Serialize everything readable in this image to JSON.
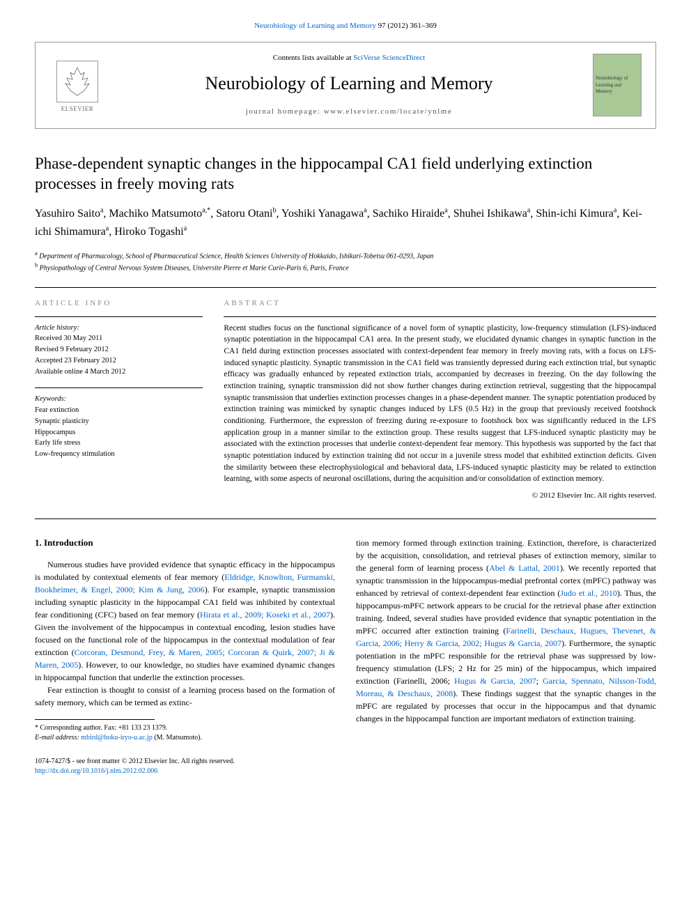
{
  "top_citation": {
    "journal_link": "Neurobiology of Learning and Memory",
    "volume_pages": " 97 (2012) 361–369"
  },
  "header": {
    "publisher": "ELSEVIER",
    "contents_prefix": "Contents lists available at ",
    "contents_link": "SciVerse ScienceDirect",
    "journal_name": "Neurobiology of Learning and Memory",
    "homepage_prefix": "journal homepage: ",
    "homepage_url": "www.elsevier.com/locate/ynlme",
    "cover_text": "Neurobiology of Learning and Memory"
  },
  "title": "Phase-dependent synaptic changes in the hippocampal CA1 field underlying extinction processes in freely moving rats",
  "authors": [
    {
      "name": "Yasuhiro Saito",
      "sup": "a"
    },
    {
      "name": "Machiko Matsumoto",
      "sup": "a,*"
    },
    {
      "name": "Satoru Otani",
      "sup": "b"
    },
    {
      "name": "Yoshiki Yanagawa",
      "sup": "a"
    },
    {
      "name": "Sachiko Hiraide",
      "sup": "a"
    },
    {
      "name": "Shuhei Ishikawa",
      "sup": "a"
    },
    {
      "name": "Shin-ichi Kimura",
      "sup": "a"
    },
    {
      "name": "Kei-ichi Shimamura",
      "sup": "a"
    },
    {
      "name": "Hiroko Togashi",
      "sup": "a"
    }
  ],
  "affiliations": [
    {
      "sup": "a",
      "text": "Department of Pharmacology, School of Pharmaceutical Science, Health Sciences University of Hokkaido, Ishikari-Tobetsu 061-0293, Japan"
    },
    {
      "sup": "b",
      "text": "Physiopathology of Central Nervous System Diseases, Universite Pierre et Marie Curie-Paris 6, Paris, France"
    }
  ],
  "article_info": {
    "header": "ARTICLE INFO",
    "history_label": "Article history:",
    "received": "Received 30 May 2011",
    "revised": "Revised 9 February 2012",
    "accepted": "Accepted 23 February 2012",
    "online": "Available online 4 March 2012",
    "keywords_label": "Keywords:",
    "keywords": [
      "Fear extinction",
      "Synaptic plasticity",
      "Hippocampus",
      "Early life stress",
      "Low-frequency stimulation"
    ]
  },
  "abstract": {
    "header": "ABSTRACT",
    "text": "Recent studies focus on the functional significance of a novel form of synaptic plasticity, low-frequency stimulation (LFS)-induced synaptic potentiation in the hippocampal CA1 area. In the present study, we elucidated dynamic changes in synaptic function in the CA1 field during extinction processes associated with context-dependent fear memory in freely moving rats, with a focus on LFS-induced synaptic plasticity. Synaptic transmission in the CA1 field was transiently depressed during each extinction trial, but synaptic efficacy was gradually enhanced by repeated extinction trials, accompanied by decreases in freezing. On the day following the extinction training, synaptic transmission did not show further changes during extinction retrieval, suggesting that the hippocampal synaptic transmission that underlies extinction processes changes in a phase-dependent manner. The synaptic potentiation produced by extinction training was mimicked by synaptic changes induced by LFS (0.5 Hz) in the group that previously received footshock conditioning. Furthermore, the expression of freezing during re-exposure to footshock box was significantly reduced in the LFS application group in a manner similar to the extinction group. These results suggest that LFS-induced synaptic plasticity may be associated with the extinction processes that underlie context-dependent fear memory. This hypothesis was supported by the fact that synaptic potentiation induced by extinction training did not occur in a juvenile stress model that exhibited extinction deficits. Given the similarity between these electrophysiological and behavioral data, LFS-induced synaptic plasticity may be related to extinction learning, with some aspects of neuronal oscillations, during the acquisition and/or consolidation of extinction memory.",
    "copyright": "© 2012 Elsevier Inc. All rights reserved."
  },
  "body": {
    "heading": "1. Introduction",
    "col1_p1_pre": "Numerous studies have provided evidence that synaptic efficacy in the hippocampus is modulated by contextual elements of fear memory (",
    "col1_p1_link1": "Eldridge, Knowlton, Furmanski, Bookheimer, & Engel, 2000; Kim & Jung, 2006",
    "col1_p1_mid1": "). For example, synaptic transmission including synaptic plasticity in the hippocampal CA1 field was inhibited by contextual fear conditioning (CFC) based on fear memory (",
    "col1_p1_link2": "Hirata et al., 2009; Koseki et al., 2007",
    "col1_p1_mid2": "). Given the involvement of the hippocampus in contextual encoding, lesion studies have focused on the functional role of the hippocampus in the contextual modulation of fear extinction (",
    "col1_p1_link3": "Corcoran, Desmond, Frey, & Maren, 2005; Corcoran & Quirk, 2007; Ji & Maren, 2005",
    "col1_p1_post": "). However, to our knowledge, no studies have examined dynamic changes in hippocampal function that underlie the extinction processes.",
    "col1_p2": "Fear extinction is thought to consist of a learning process based on the formation of safety memory, which can be termed as extinc-",
    "col2_p1_pre": "tion memory formed through extinction training. Extinction, therefore, is characterized by the acquisition, consolidation, and retrieval phases of extinction memory, similar to the general form of learning process (",
    "col2_p1_link1": "Abel & Lattal, 2001",
    "col2_p1_mid1": "). We recently reported that synaptic transmission in the hippocampus-medial prefrontal cortex (mPFC) pathway was enhanced by retrieval of context-dependent fear extinction (",
    "col2_p1_link2": "Judo et al., 2010",
    "col2_p1_mid2": "). Thus, the hippocampus-mPFC network appears to be crucial for the retrieval phase after extinction training. Indeed, several studies have provided evidence that synaptic potentiation in the mPFC occurred after extinction training (",
    "col2_p1_link3": "Farinelli, Deschaux, Hugues, Thevenet, & Garcia, 2006; Herry & Garcia, 2002; Hugus & Garcia, 2007",
    "col2_p1_mid3": "). Furthermore, the synaptic potentiation in the mPFC responsible for the retrieval phase was suppressed by low-frequency stimulation (LFS; 2 Hz for 25 min) of the hippocampus, which impaired extinction (Farinelli, 2006; ",
    "col2_p1_link4": "Hugus & Garcia, 2007",
    "col2_p1_mid4": "; ",
    "col2_p1_link5": "Garcia, Spennato, Nilsson-Todd, Moreau, & Deschaux, 2008",
    "col2_p1_post": "). These findings suggest that the synaptic changes in the mPFC are regulated by processes that occur in the hippocampus and that dynamic changes in the hippocampal function are important mediators of extinction training."
  },
  "footnote": {
    "corr_label": "* Corresponding author. Fax: +81 133 23 1379.",
    "email_label": "E-mail address: ",
    "email": "mbird@hoku-iryo-u.ac.jp",
    "email_suffix": " (M. Matsumoto)."
  },
  "bottom": {
    "issn": "1074-7427/$ - see front matter © 2012 Elsevier Inc. All rights reserved.",
    "doi": "http://dx.doi.org/10.1016/j.nlm.2012.02.006"
  },
  "colors": {
    "link": "#0066cc",
    "text": "#000000",
    "muted": "#888888",
    "border": "#999999",
    "cover_bg": "#a8c896"
  }
}
